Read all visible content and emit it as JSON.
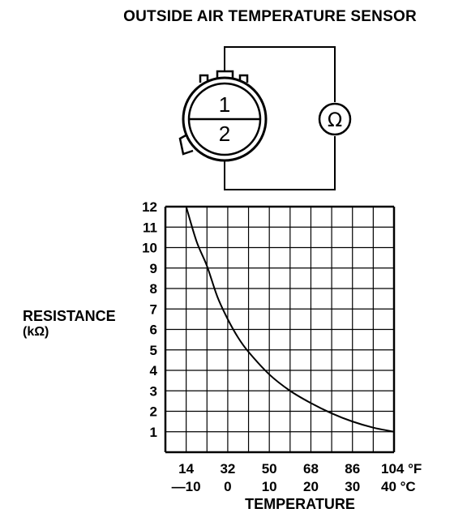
{
  "title": "OUTSIDE AIR TEMPERATURE SENSOR",
  "sensor": {
    "terminal_1": "1",
    "terminal_2": "2",
    "meter_symbol": "Ω"
  },
  "chart_data": {
    "type": "line",
    "ylabel": "RESISTANCE",
    "ylabel_unit": "(kΩ)",
    "xlabel": "TEMPERATURE",
    "yticks": [
      "1",
      "2",
      "3",
      "4",
      "5",
      "6",
      "7",
      "8",
      "9",
      "10",
      "11",
      "12"
    ],
    "xticks_f": [
      "14",
      "32",
      "50",
      "68",
      "86",
      "104 °F"
    ],
    "xticks_c": [
      "—10",
      "0",
      "10",
      "20",
      "30",
      "40 °C"
    ],
    "ylim": [
      0,
      12
    ],
    "xlim_c": [
      -15,
      40
    ],
    "grid": true,
    "series": [
      {
        "x_c": [
          -10,
          -7.5,
          -5,
          -2.5,
          0,
          2.5,
          5,
          10,
          15,
          20,
          25,
          30,
          35,
          40
        ],
        "y_kohm": [
          12,
          10.3,
          9.1,
          7.6,
          6.5,
          5.6,
          4.9,
          3.8,
          3.0,
          2.4,
          1.9,
          1.5,
          1.2,
          1.0
        ]
      }
    ]
  }
}
